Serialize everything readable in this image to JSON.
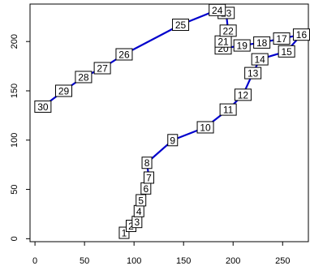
{
  "chart_data": {
    "type": "line",
    "title": "",
    "xlabel": "",
    "ylabel": "",
    "xlim": [
      -5,
      276
    ],
    "ylim": [
      -3,
      238
    ],
    "grid": false,
    "x_ticks": [
      0,
      50,
      100,
      150,
      200,
      250
    ],
    "y_ticks": [
      0,
      50,
      100,
      150,
      200
    ],
    "line_color": "#0000cc",
    "series": [
      {
        "points": [
          {
            "label": "1",
            "x": 90,
            "y": 6
          },
          {
            "label": "2",
            "x": 97,
            "y": 13
          },
          {
            "label": "3",
            "x": 103,
            "y": 17
          },
          {
            "label": "4",
            "x": 105,
            "y": 28
          },
          {
            "label": "5",
            "x": 107,
            "y": 39
          },
          {
            "label": "6",
            "x": 112,
            "y": 51
          },
          {
            "label": "7",
            "x": 115,
            "y": 62
          },
          {
            "label": "8",
            "x": 113,
            "y": 77
          },
          {
            "label": "9",
            "x": 139,
            "y": 100
          },
          {
            "label": "10",
            "x": 172,
            "y": 113
          },
          {
            "label": "11",
            "x": 195,
            "y": 131
          },
          {
            "label": "12",
            "x": 210,
            "y": 146
          },
          {
            "label": "13",
            "x": 220,
            "y": 168
          },
          {
            "label": "14",
            "x": 227,
            "y": 182
          },
          {
            "label": "15",
            "x": 254,
            "y": 190
          },
          {
            "label": "16",
            "x": 269,
            "y": 207
          },
          {
            "label": "17",
            "x": 249,
            "y": 203
          },
          {
            "label": "18",
            "x": 229,
            "y": 199
          },
          {
            "label": "19",
            "x": 209,
            "y": 196
          },
          {
            "label": "20",
            "x": 190,
            "y": 193
          },
          {
            "label": "21",
            "x": 190,
            "y": 200
          },
          {
            "label": "22",
            "x": 195,
            "y": 211
          },
          {
            "label": "23",
            "x": 193,
            "y": 229
          },
          {
            "label": "24",
            "x": 184,
            "y": 232
          },
          {
            "label": "25",
            "x": 147,
            "y": 217
          },
          {
            "label": "26",
            "x": 90,
            "y": 187
          },
          {
            "label": "27",
            "x": 68,
            "y": 173
          },
          {
            "label": "28",
            "x": 49,
            "y": 164
          },
          {
            "label": "29",
            "x": 29,
            "y": 150
          },
          {
            "label": "30",
            "x": 8,
            "y": 134
          }
        ]
      }
    ]
  }
}
